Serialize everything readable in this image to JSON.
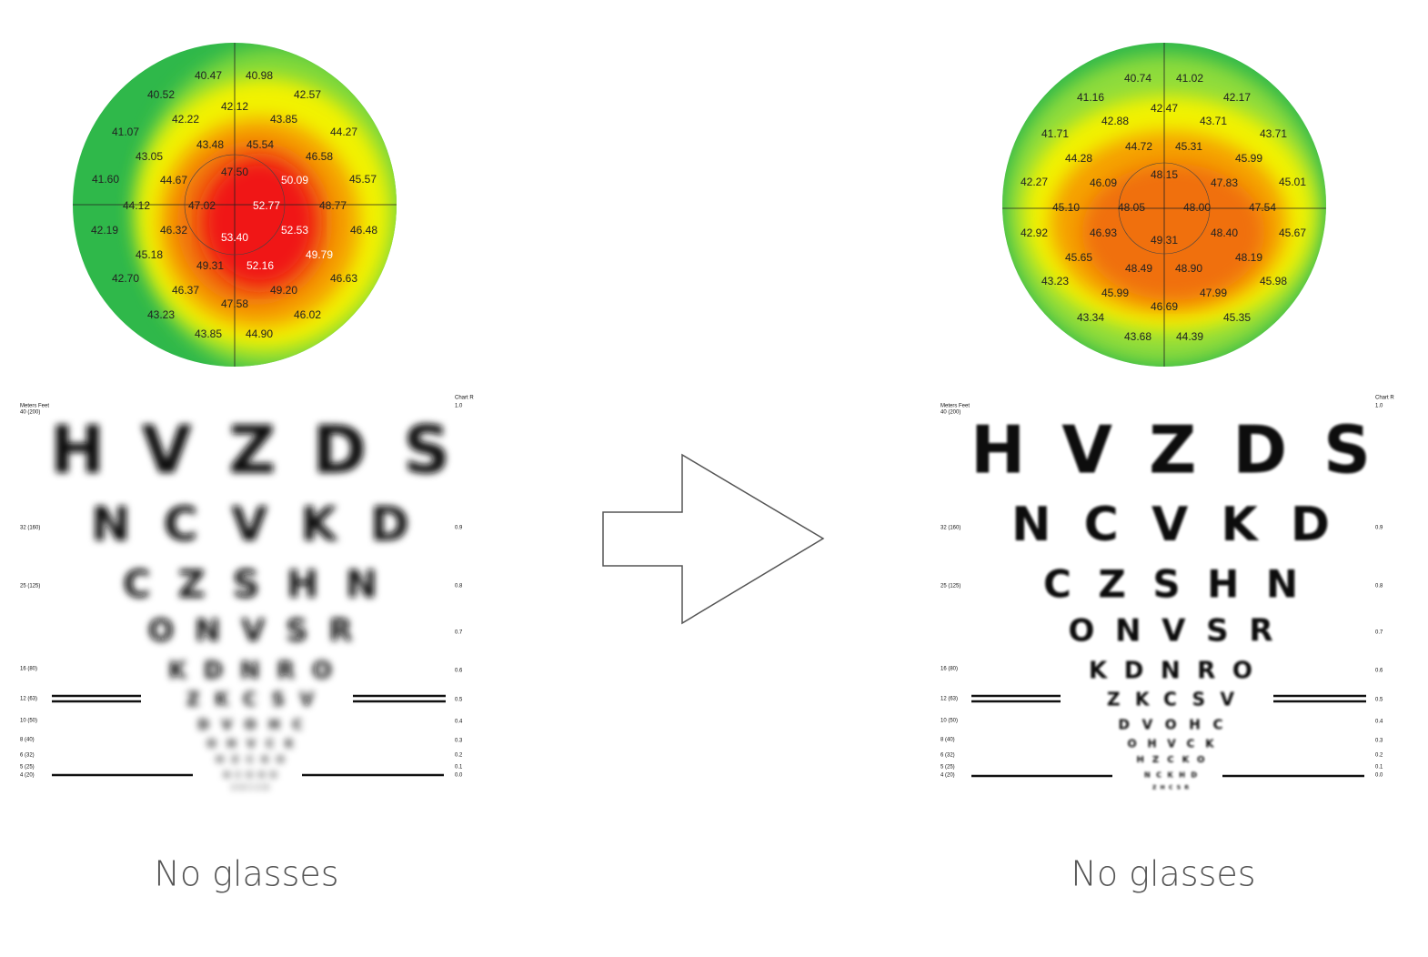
{
  "panels": [
    {
      "map": {
        "values": [
          "40.47",
          "40.98",
          "40.52",
          "42.57",
          "42.12",
          "42.22",
          "43.85",
          "41.07",
          "44.27",
          "43.48",
          "45.54",
          "43.05",
          "46.58",
          "47.50",
          "41.60",
          "44.67",
          "50.09",
          "45.57",
          "44.12",
          "47.02",
          "52.77",
          "48.77",
          "42.19",
          "46.32",
          "52.53",
          "46.48",
          "53.40",
          "45.18",
          "49.79",
          "49.31",
          "52.16",
          "42.70",
          "46.63",
          "46.37",
          "49.20",
          "47.58",
          "43.23",
          "46.02",
          "43.85",
          "44.90"
        ]
      },
      "eye_chart": {
        "rows": [
          "HVZDS",
          "NCVKD",
          "CZSHN",
          "ONVSR",
          "KDNRO",
          "ZKCSV",
          "DVOHC",
          "OHVCK",
          "HZCKO",
          "NCKHD",
          "ZHCSR"
        ],
        "left_labels": [
          "Meters Feet",
          "40 (200)",
          "32 (160)",
          "25 (125)",
          "16 (80)",
          "12 (63)",
          "10 (50)",
          "8 (40)",
          "6 (32)",
          "5 (25)",
          "4 (20)"
        ],
        "right_labels": [
          "Chart R",
          "1.0",
          "0.9",
          "0.8",
          "0.7",
          "0.6",
          "0.5",
          "0.4",
          "0.3",
          "0.2",
          "0.1",
          "0.0"
        ]
      },
      "caption": "No glasses"
    },
    {
      "map": {
        "values": [
          "40.74",
          "41.02",
          "41.16",
          "42.17",
          "42.47",
          "42.88",
          "43.71",
          "41.71",
          "43.71",
          "44.72",
          "45.31",
          "44.28",
          "45.99",
          "48.15",
          "42.27",
          "46.09",
          "47.83",
          "45.01",
          "45.10",
          "48.05",
          "48.00",
          "47.54",
          "42.92",
          "46.93",
          "48.40",
          "45.67",
          "49.31",
          "45.65",
          "48.19",
          "48.49",
          "48.90",
          "43.23",
          "45.98",
          "45.99",
          "47.99",
          "46.69",
          "43.34",
          "45.35",
          "43.68",
          "44.39"
        ]
      },
      "eye_chart": {
        "rows": [
          "HVZDS",
          "NCVKD",
          "CZSHN",
          "ONVSR",
          "KDNRO",
          "ZKCSV",
          "DVOHC",
          "OHVCK",
          "HZCKO",
          "NCKHD",
          "ZHCSR"
        ],
        "left_labels": [
          "Meters Feet",
          "40 (200)",
          "32 (160)",
          "25 (125)",
          "16 (80)",
          "12 (63)",
          "10 (50)",
          "8 (40)",
          "6 (32)",
          "5 (25)",
          "4 (20)"
        ],
        "right_labels": [
          "Chart R",
          "1.0",
          "0.9",
          "0.8",
          "0.7",
          "0.6",
          "0.5",
          "0.4",
          "0.3",
          "0.2",
          "0.1",
          "0.0"
        ]
      },
      "caption": "No glasses"
    }
  ]
}
